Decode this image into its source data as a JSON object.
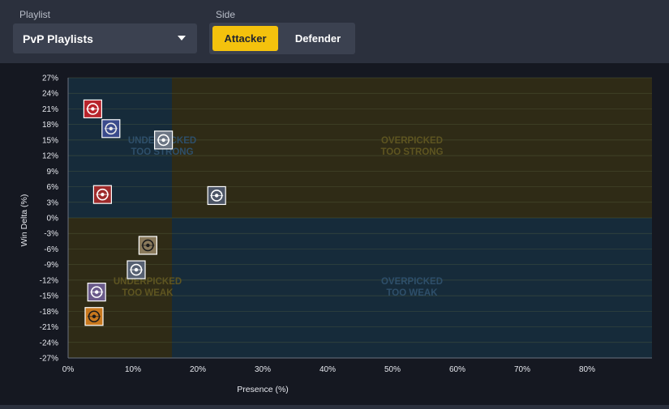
{
  "controls": {
    "playlist_label": "Playlist",
    "playlist_value": "PvP Playlists",
    "side_label": "Side",
    "side_options": [
      "Attacker",
      "Defender"
    ],
    "side_selected": "Attacker"
  },
  "colors": {
    "accent": "#f4c20d",
    "quadrant_blue": "#162b3a",
    "quadrant_olive": "#2f2b16",
    "blue_text": "#2e4f6a",
    "olive_text": "#5e5521",
    "grid": "#55613f"
  },
  "chart_data": {
    "type": "scatter",
    "xlabel": "Presence (%)",
    "ylabel": "Win Delta (%)",
    "xlim": [
      0,
      90
    ],
    "ylim": [
      -27,
      27
    ],
    "x_ticks": [
      "0%",
      "10%",
      "20%",
      "30%",
      "40%",
      "50%",
      "60%",
      "70%",
      "80%"
    ],
    "y_ticks": [
      "27%",
      "24%",
      "21%",
      "18%",
      "15%",
      "12%",
      "9%",
      "6%",
      "3%",
      "0%",
      "-3%",
      "-6%",
      "-9%",
      "-12%",
      "-15%",
      "-18%",
      "-21%",
      "-24%",
      "-27%"
    ],
    "grid": true,
    "quadrant_split": {
      "x": 16,
      "y": 0
    },
    "quadrant_labels": {
      "top_left": [
        "UNDERPICKED",
        "TOO STRONG"
      ],
      "top_right": [
        "OVERPICKED",
        "TOO STRONG"
      ],
      "bottom_left": [
        "UNDERPICKED",
        "TOO WEAK"
      ],
      "bottom_right": [
        "OVERPICKED",
        "TOO WEAK"
      ]
    },
    "points": [
      {
        "x": 3.8,
        "y": 21.0,
        "icon": "red-target-icon",
        "bg": "#b8242c",
        "fg": "#ffffff"
      },
      {
        "x": 6.6,
        "y": 17.2,
        "icon": "antenna-icon",
        "bg": "#3a4a8c",
        "fg": "#e8e8e8"
      },
      {
        "x": 14.7,
        "y": 15.0,
        "icon": "skull-mask-icon",
        "bg": "#6b7584",
        "fg": "#ffffff"
      },
      {
        "x": 5.3,
        "y": 4.5,
        "icon": "red-splash-icon",
        "bg": "#9e2a2a",
        "fg": "#ffffff"
      },
      {
        "x": 22.9,
        "y": 4.3,
        "icon": "white-crest-icon",
        "bg": "#4c5566",
        "fg": "#ffffff"
      },
      {
        "x": 12.3,
        "y": -5.3,
        "icon": "crosshair-icon",
        "bg": "#8a7a5c",
        "fg": "#1b1b1b"
      },
      {
        "x": 10.5,
        "y": -10.0,
        "icon": "window-icon",
        "bg": "#566072",
        "fg": "#ffffff"
      },
      {
        "x": 4.4,
        "y": -14.3,
        "icon": "purple-shield-icon",
        "bg": "#6a5a8a",
        "fg": "#ffffff"
      },
      {
        "x": 4.0,
        "y": -19.0,
        "icon": "orange-mask-icon",
        "bg": "#c8781e",
        "fg": "#1b1b1b"
      }
    ]
  }
}
